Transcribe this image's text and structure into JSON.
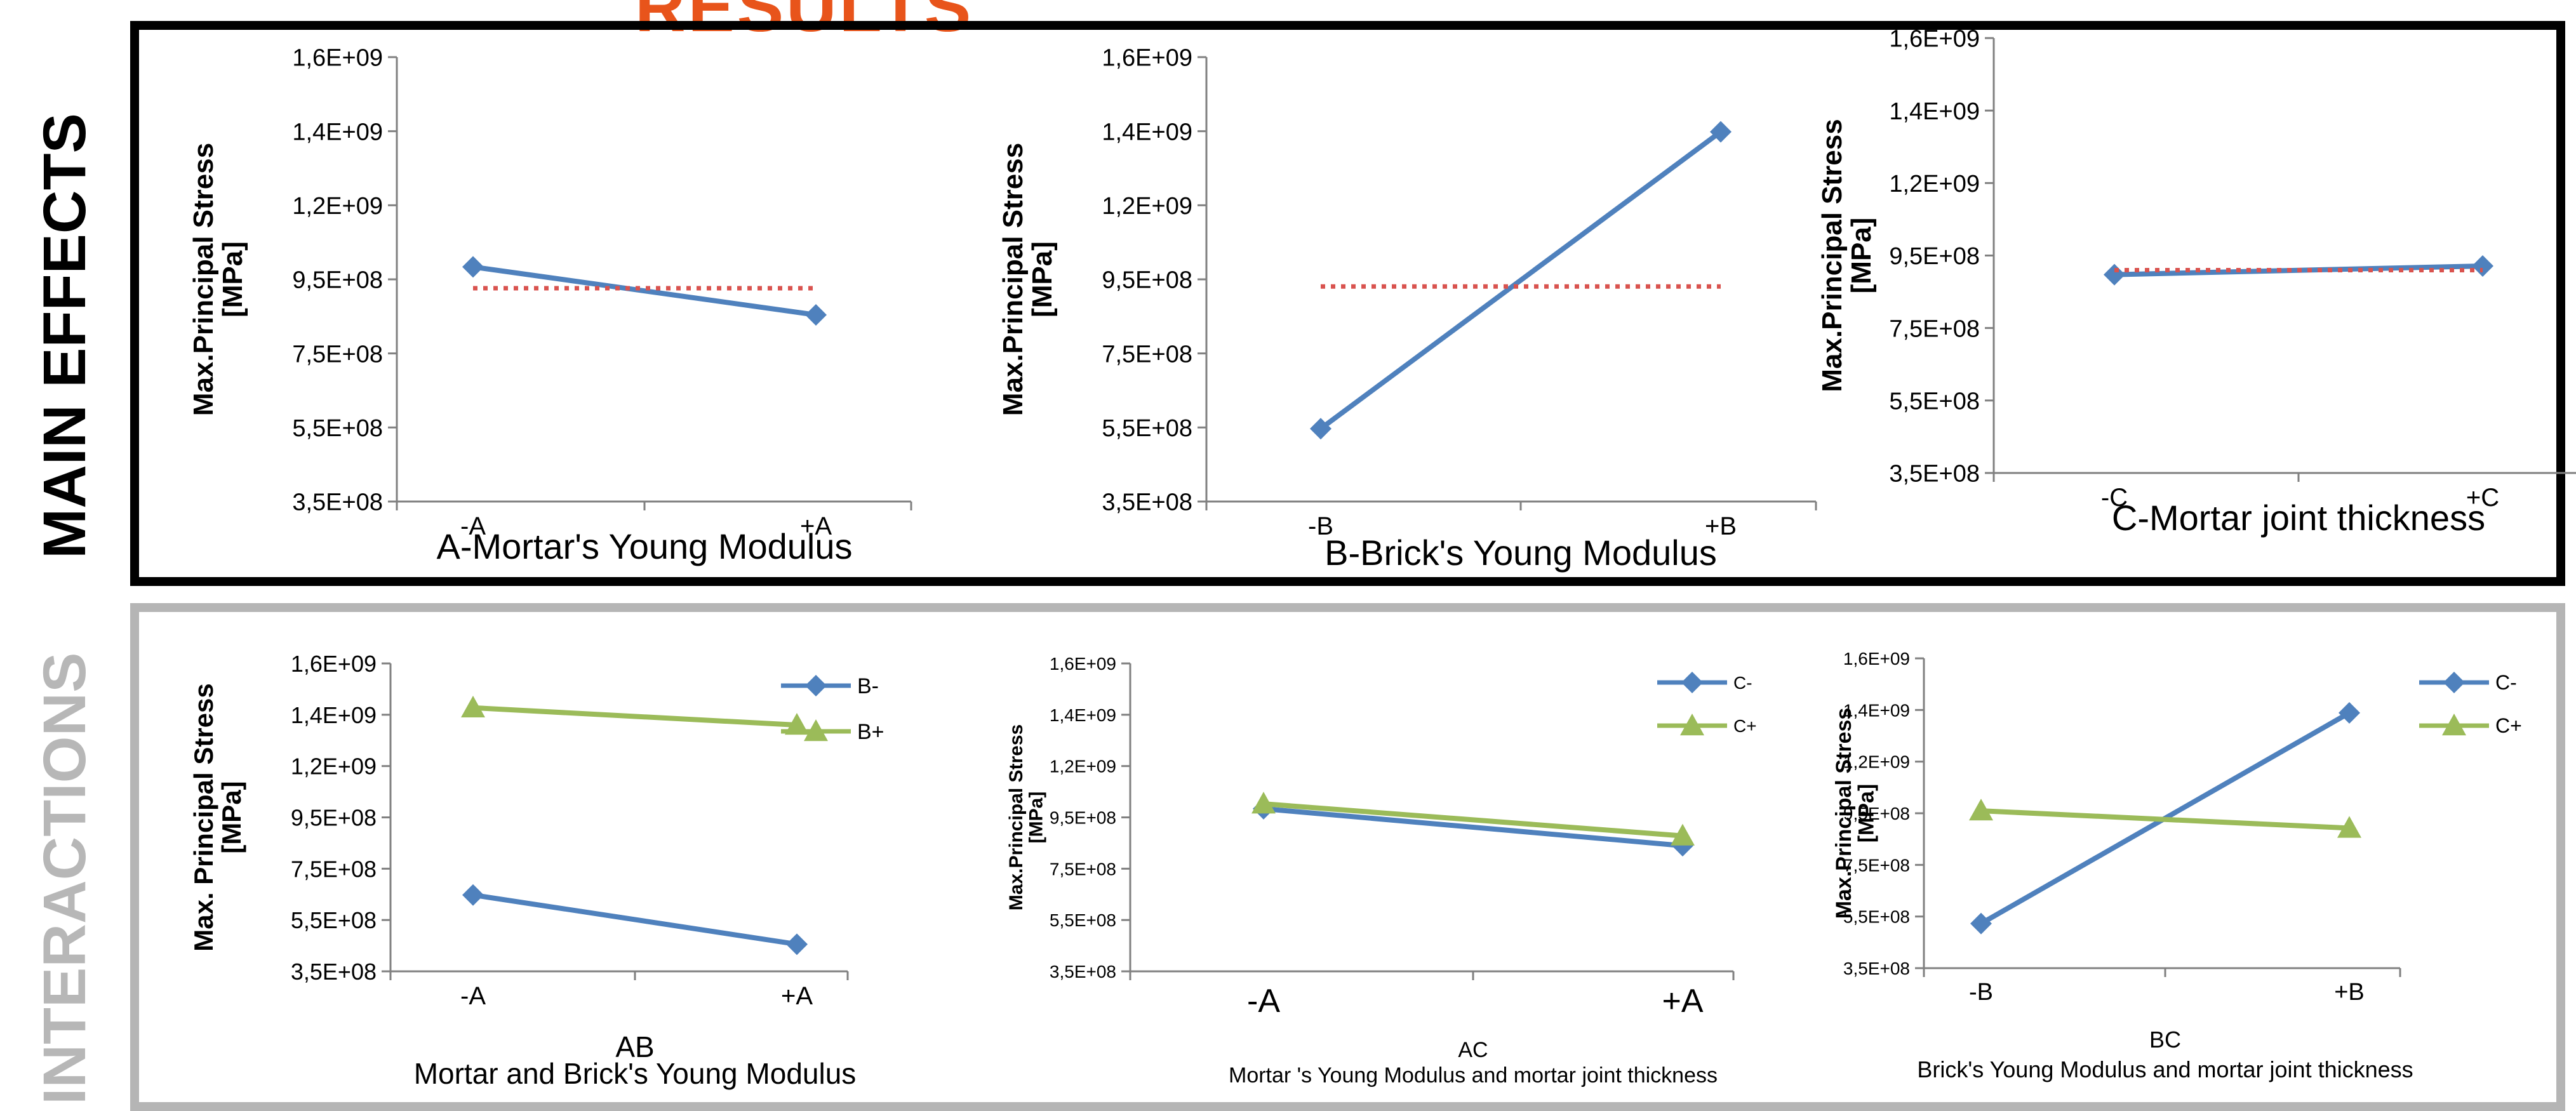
{
  "header": {
    "title_fragment": "RESULTS"
  },
  "side_labels": {
    "main": "MAIN EFFECTS",
    "interactions": "INTERACTIONS"
  },
  "colors": {
    "blue": "#4f81bd",
    "green": "#9bbb59",
    "red": "#d9534f",
    "axis": "#808080",
    "main_frame": "#000000",
    "interactions_frame": "#b5b5b5",
    "title": "#e8541b"
  },
  "chart_data": [
    {
      "type": "line",
      "title": "",
      "ylabel": "Max.Principal Stress\n[MPa]",
      "xlabel": "A-Mortar's Young Modulus",
      "categories": [
        "-A",
        "+A"
      ],
      "y_ticks": [
        "3,5E+08",
        "5,5E+08",
        "7,5E+08",
        "9,5E+08",
        "1,2E+09",
        "1,4E+09",
        "1,6E+09"
      ],
      "ylim": [
        350000000,
        1600000000
      ],
      "series": [
        {
          "name": "",
          "values": [
            1010000000,
            875000000
          ],
          "color": "#4f81bd",
          "marker": "diamond"
        },
        {
          "name": "",
          "values": [
            950000000,
            950000000
          ],
          "color": "#d9534f",
          "style": "dotted"
        }
      ],
      "legend": "none"
    },
    {
      "type": "line",
      "title": "",
      "ylabel": "Max.Principal Stress\n[MPa]",
      "xlabel": "B-Brick's Young Modulus",
      "categories": [
        "-B",
        "+B"
      ],
      "y_ticks": [
        "3,5E+08",
        "5,5E+08",
        "7,5E+08",
        "9,5E+08",
        "1,2E+09",
        "1,4E+09",
        "1,6E+09"
      ],
      "ylim": [
        350000000,
        1600000000
      ],
      "series": [
        {
          "name": "",
          "values": [
            555000000,
            1390000000
          ],
          "color": "#4f81bd",
          "marker": "diamond"
        },
        {
          "name": "",
          "values": [
            955000000,
            955000000
          ],
          "color": "#d9534f",
          "style": "dotted"
        }
      ],
      "legend": "none"
    },
    {
      "type": "line",
      "title": "",
      "ylabel": "Max.Principal Stress\n[MPa]",
      "xlabel": "C-Mortar joint thickness",
      "categories": [
        "-C",
        "+C"
      ],
      "y_ticks": [
        "3,5E+08",
        "5,5E+08",
        "7,5E+08",
        "9,5E+08",
        "1,2E+09",
        "1,4E+09",
        "1,6E+09"
      ],
      "ylim": [
        350000000,
        1600000000
      ],
      "series": [
        {
          "name": "",
          "values": [
            920000000,
            945000000
          ],
          "color": "#4f81bd",
          "marker": "diamond"
        },
        {
          "name": "",
          "values": [
            933000000,
            933000000
          ],
          "color": "#d9534f",
          "style": "dotted"
        }
      ],
      "legend": "none"
    },
    {
      "type": "line",
      "title": "AB",
      "ylabel": "Max. Principal Stress\n[MPa]",
      "xlabel": "Mortar and Brick's Young Modulus",
      "categories": [
        "-A",
        "+A"
      ],
      "y_ticks": [
        "3,5E+08",
        "5,5E+08",
        "7,5E+08",
        "9,5E+08",
        "1,2E+09",
        "1,4E+09",
        "1,6E+09"
      ],
      "ylim": [
        350000000,
        1600000000
      ],
      "series": [
        {
          "name": "B-",
          "values": [
            660000000,
            460000000
          ],
          "color": "#4f81bd",
          "marker": "diamond"
        },
        {
          "name": "B+",
          "values": [
            1420000000,
            1350000000
          ],
          "color": "#9bbb59",
          "marker": "triangle"
        }
      ],
      "legend": "right"
    },
    {
      "type": "line",
      "title": "AC",
      "ylabel": "Max.Principal Stress\n[MPa]",
      "xlabel": "Mortar 's Young Modulus and mortar joint thickness",
      "categories": [
        "-A",
        "+A"
      ],
      "y_ticks": [
        "3,5E+08",
        "5,5E+08",
        "7,5E+08",
        "9,5E+08",
        "1,2E+09",
        "1,4E+09",
        "1,6E+09"
      ],
      "ylim": [
        350000000,
        1600000000
      ],
      "series": [
        {
          "name": "C-",
          "values": [
            1010000000,
            860000000
          ],
          "color": "#4f81bd",
          "marker": "diamond"
        },
        {
          "name": "C+",
          "values": [
            1030000000,
            900000000
          ],
          "color": "#9bbb59",
          "marker": "triangle"
        }
      ],
      "legend": "right"
    },
    {
      "type": "line",
      "title": "BC",
      "ylabel": "Max.Principal Stress\n[MPa]",
      "xlabel": "Brick's Young Modulus and mortar joint thickness",
      "categories": [
        "-B",
        "+B"
      ],
      "y_ticks": [
        "3,5E+08",
        "5,5E+08",
        "7,5E+08",
        "9,5E+08",
        "1,2E+09",
        "1,4E+09",
        "1,6E+09"
      ],
      "ylim": [
        350000000,
        1600000000
      ],
      "series": [
        {
          "name": "C-",
          "values": [
            530000000,
            1380000000
          ],
          "color": "#4f81bd",
          "marker": "diamond"
        },
        {
          "name": "C+",
          "values": [
            985000000,
            915000000
          ],
          "color": "#9bbb59",
          "marker": "triangle"
        }
      ],
      "legend": "right"
    }
  ]
}
